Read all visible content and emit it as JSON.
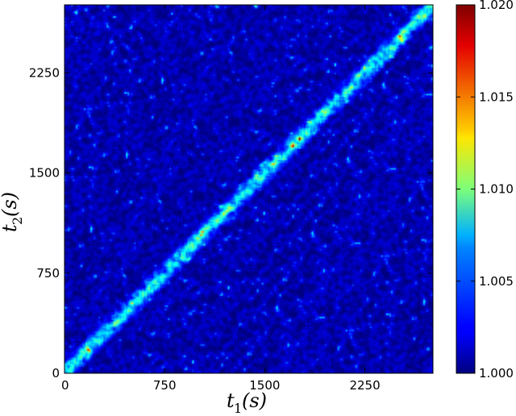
{
  "chart_data": {
    "type": "heatmap",
    "title": "",
    "xlabel": "t_1(s)",
    "ylabel": "t_2(s)",
    "xlim": [
      0,
      2760
    ],
    "ylim": [
      0,
      2760
    ],
    "x_ticks": [
      0,
      750,
      1500,
      2250
    ],
    "x_tick_labels": [
      "0",
      "750",
      "1500",
      "2250"
    ],
    "y_ticks": [
      0,
      750,
      1500,
      2250
    ],
    "y_tick_labels": [
      "0",
      "750",
      "1500",
      "2250"
    ],
    "colormap": "jet",
    "colorbar": {
      "range": [
        1.0,
        1.02
      ],
      "ticks": [
        1.0,
        1.005,
        1.01,
        1.015,
        1.02
      ],
      "tick_labels": [
        "1.000",
        "1.005",
        "1.010",
        "1.015",
        "1.020"
      ]
    },
    "description_values": {
      "background_level": 1.001,
      "diagonal_level": 1.008,
      "diagonal_peak": 1.02
    },
    "grid": false
  }
}
